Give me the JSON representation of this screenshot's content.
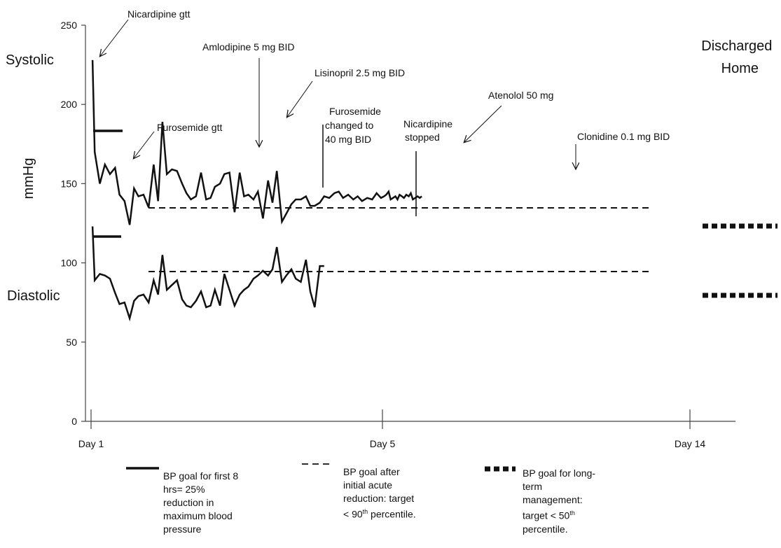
{
  "chart_data": {
    "type": "line",
    "title": "",
    "xlabel": "",
    "ylabel": "mmHg",
    "ylim": [
      0,
      250
    ],
    "yticks": [
      0,
      50,
      100,
      150,
      200,
      250
    ],
    "x_labels": [
      {
        "label": "Day 1",
        "x": 1
      },
      {
        "label": "Day 5",
        "x": 5
      },
      {
        "label": "Day 14",
        "x": 14
      }
    ],
    "series_labels": {
      "systolic": "Systolic",
      "diastolic": "Diastolic"
    },
    "discharged_label": "Discharged\nHome",
    "series": [
      {
        "name": "Systolic",
        "x": [
          1.02,
          1.05,
          1.12,
          1.19,
          1.26,
          1.33,
          1.39,
          1.46,
          1.53,
          1.59,
          1.65,
          1.72,
          1.79,
          1.86,
          1.92,
          1.98,
          2.04,
          2.11,
          2.18,
          2.25,
          2.31,
          2.37,
          2.44,
          2.51,
          2.58,
          2.64,
          2.7,
          2.77,
          2.83,
          2.9,
          2.97,
          3.04,
          3.1,
          3.16,
          3.23,
          3.29,
          3.36,
          3.43,
          3.49,
          3.55,
          3.62,
          3.68,
          3.75,
          3.81,
          3.88,
          3.95,
          4.01,
          4.07,
          4.14,
          4.2,
          4.27,
          4.34,
          4.4,
          4.46,
          4.53,
          4.6,
          4.66,
          4.72,
          4.79,
          4.86,
          4.92,
          4.98,
          5.05,
          5.11,
          5.18,
          5.24,
          5.31,
          5.38,
          5.44,
          5.5,
          5.57,
          5.63,
          5.7,
          5.77,
          5.83,
          5.89,
          5.96,
          6.03,
          6.09,
          6.15
        ],
        "values": [
          228,
          170,
          150,
          162,
          156,
          160,
          143,
          139,
          124,
          147,
          142,
          143,
          135,
          162,
          139,
          189,
          156,
          159,
          158,
          150,
          144,
          140,
          142,
          157,
          140,
          141,
          148,
          150,
          156,
          157,
          132,
          157,
          142,
          143,
          140,
          145,
          128,
          152,
          138,
          158,
          126,
          131,
          137,
          140,
          140,
          142,
          136,
          136,
          138,
          142,
          141,
          144,
          145,
          141,
          143,
          140,
          142,
          139,
          141,
          140,
          144,
          141,
          142,
          143,
          145,
          140,
          141,
          142,
          140,
          143,
          142,
          141,
          143,
          142,
          144,
          140,
          141,
          142,
          141,
          142
        ]
      },
      {
        "name": "Diastolic",
        "x": [
          1.02,
          1.05,
          1.12,
          1.19,
          1.26,
          1.33,
          1.39,
          1.46,
          1.53,
          1.59,
          1.65,
          1.72,
          1.79,
          1.86,
          1.92,
          1.98,
          2.04,
          2.11,
          2.18,
          2.25,
          2.31,
          2.37,
          2.44,
          2.51,
          2.58,
          2.64,
          2.7,
          2.77,
          2.83,
          2.9,
          2.97,
          3.04,
          3.1,
          3.16,
          3.23,
          3.29,
          3.36,
          3.43,
          3.49,
          3.55,
          3.62,
          3.68,
          3.75,
          3.81,
          3.88,
          3.95,
          4.01,
          4.07,
          4.14,
          4.2
        ],
        "values": [
          123,
          89,
          93,
          92,
          90,
          81,
          74,
          75,
          65,
          76,
          79,
          80,
          75,
          89,
          80,
          105,
          83,
          86,
          89,
          77,
          73,
          72,
          76,
          82,
          72,
          73,
          83,
          73,
          93,
          83,
          73,
          80,
          83,
          85,
          90,
          92,
          95,
          92,
          96,
          110,
          88,
          92,
          96,
          90,
          88,
          102,
          82,
          72,
          98,
          98
        ]
      }
    ],
    "annotations": [
      {
        "text": "Nicardipine gtt"
      },
      {
        "text": "Amlodipine 5 mg BID"
      },
      {
        "text": "Lisinopril 2.5 mg BID"
      },
      {
        "text": "Furosemide gtt"
      },
      {
        "text": "Furosemide\nchanged to\n40 mg BID"
      },
      {
        "text": "Nicardipine\nstopped"
      },
      {
        "text": "Atenolol 50 mg"
      },
      {
        "text": "Clonidine 0.1 mg BID"
      }
    ],
    "goal_lines": {
      "acute": {
        "y": 183
      },
      "intermediate_systolic": {
        "y": 134
      },
      "intermediate_diastolic": {
        "y": 94
      },
      "long_term_systolic": {
        "y": 123
      },
      "long_term_diastolic": {
        "y": 79
      }
    },
    "legend": [
      {
        "style": "solid",
        "text": "BP goal for first 8\nhrs= 25%\nreduction in\nmaximum blood\npressure"
      },
      {
        "style": "dashed",
        "text": "BP goal after\ninitial acute\nreduction: target\n< 90th percentile."
      },
      {
        "style": "dotted",
        "text": "BP goal for long-\nterm\nmanagement:\ntarget < 50th\npercentile."
      }
    ]
  }
}
